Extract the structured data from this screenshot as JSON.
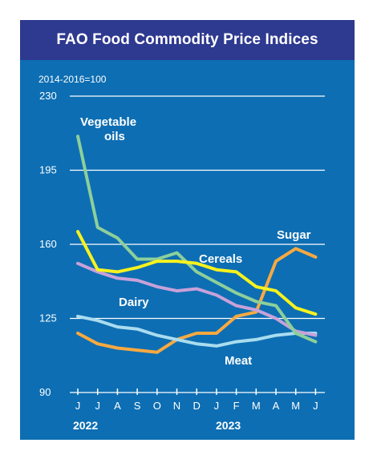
{
  "chart_data": {
    "type": "line",
    "title": "FAO Food Commodity Price Indices",
    "subtitle": "2014-2016=100",
    "ylim": [
      90,
      230
    ],
    "yticks": [
      90,
      125,
      160,
      195,
      230
    ],
    "categories": [
      "J",
      "J",
      "A",
      "S",
      "O",
      "N",
      "D",
      "J",
      "F",
      "M",
      "A",
      "M",
      "J"
    ],
    "years": [
      "2022",
      "2023"
    ],
    "grid": true,
    "series": [
      {
        "name": "Vegetable oils",
        "color": "#8dcf9a",
        "values": [
          211,
          168,
          163,
          153,
          153,
          156,
          147,
          142,
          137,
          133,
          131,
          118,
          114
        ]
      },
      {
        "name": "Cereals",
        "color": "#f7f21e",
        "values": [
          166,
          148,
          147,
          149,
          152,
          152,
          151,
          148,
          147,
          140,
          138,
          130,
          127
        ]
      },
      {
        "name": "Sugar",
        "color": "#f7a941",
        "values": [
          118,
          113,
          111,
          110,
          109,
          115,
          118,
          118,
          126,
          128,
          152,
          158,
          154
        ]
      },
      {
        "name": "Dairy",
        "color": "#c8a1d9",
        "values": [
          151,
          147,
          144,
          143,
          140,
          138,
          139,
          136,
          131,
          129,
          125,
          119,
          117
        ]
      },
      {
        "name": "Meat",
        "color": "#a9dcef",
        "values": [
          126,
          124,
          121,
          120,
          117,
          115,
          113,
          112,
          114,
          115,
          117,
          118,
          118
        ]
      }
    ]
  }
}
